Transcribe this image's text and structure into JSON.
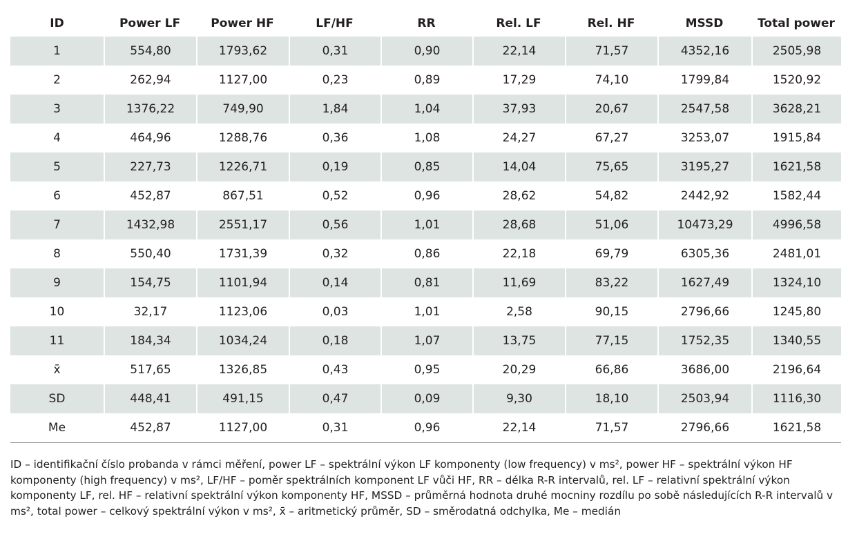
{
  "table": {
    "headers": [
      "ID",
      "Power LF",
      "Power HF",
      "LF/HF",
      "RR",
      "Rel. LF",
      "Rel. HF",
      "MSSD",
      "Total power"
    ],
    "rows": [
      [
        "1",
        "554,80",
        "1793,62",
        "0,31",
        "0,90",
        "22,14",
        "71,57",
        "4352,16",
        "2505,98"
      ],
      [
        "2",
        "262,94",
        "1127,00",
        "0,23",
        "0,89",
        "17,29",
        "74,10",
        "1799,84",
        "1520,92"
      ],
      [
        "3",
        "1376,22",
        "749,90",
        "1,84",
        "1,04",
        "37,93",
        "20,67",
        "2547,58",
        "3628,21"
      ],
      [
        "4",
        "464,96",
        "1288,76",
        "0,36",
        "1,08",
        "24,27",
        "67,27",
        "3253,07",
        "1915,84"
      ],
      [
        "5",
        "227,73",
        "1226,71",
        "0,19",
        "0,85",
        "14,04",
        "75,65",
        "3195,27",
        "1621,58"
      ],
      [
        "6",
        "452,87",
        "867,51",
        "0,52",
        "0,96",
        "28,62",
        "54,82",
        "2442,92",
        "1582,44"
      ],
      [
        "7",
        "1432,98",
        "2551,17",
        "0,56",
        "1,01",
        "28,68",
        "51,06",
        "10473,29",
        "4996,58"
      ],
      [
        "8",
        "550,40",
        "1731,39",
        "0,32",
        "0,86",
        "22,18",
        "69,79",
        "6305,36",
        "2481,01"
      ],
      [
        "9",
        "154,75",
        "1101,94",
        "0,14",
        "0,81",
        "11,69",
        "83,22",
        "1627,49",
        "1324,10"
      ],
      [
        "10",
        "32,17",
        "1123,06",
        "0,03",
        "1,01",
        "2,58",
        "90,15",
        "2796,66",
        "1245,80"
      ],
      [
        "11",
        "184,34",
        "1034,24",
        "0,18",
        "1,07",
        "13,75",
        "77,15",
        "1752,35",
        "1340,55"
      ],
      [
        "x̄",
        "517,65",
        "1326,85",
        "0,43",
        "0,95",
        "20,29",
        "66,86",
        "3686,00",
        "2196,64"
      ],
      [
        "SD",
        "448,41",
        "491,15",
        "0,47",
        "0,09",
        "9,30",
        "18,10",
        "2503,94",
        "1116,30"
      ],
      [
        "Me",
        "452,87",
        "1127,00",
        "0,31",
        "0,96",
        "22,14",
        "71,57",
        "2796,66",
        "1621,58"
      ]
    ]
  },
  "caption": "ID – identifikační číslo probanda v rámci měření, power LF – spektrální výkon LF komponenty (low frequency) v ms², power HF – spektrální výkon HF komponenty (high frequency) v ms², LF/HF – poměr spektrálních komponent LF vůči HF, RR – délka R-R intervalů, rel. LF – relativní spektrální výkon komponenty LF, rel. HF – relativní spektrální výkon komponenty HF, MSSD – průměrná hodnota druhé mocniny rozdílu po sobě následujících R-R intervalů v ms², total power – celkový spektrální výkon v ms², x̄ – aritmetický průměr, SD – směrodatná odchylka, Me – medián",
  "colors": {
    "row_stripe": "#dde4e1",
    "text": "#231f20"
  }
}
